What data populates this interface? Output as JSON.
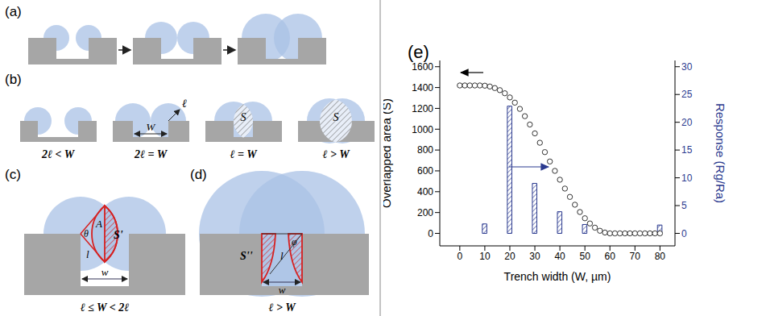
{
  "chart_data": {
    "type": "combo",
    "title": "(e)",
    "x_label": "Trench width (W, µm)",
    "y_label": "Overlapped area (S)",
    "y2_label": "Response (Rg/Ra)",
    "x": [
      0,
      2,
      4,
      6,
      8,
      10,
      12,
      14,
      16,
      18,
      20,
      22,
      24,
      26,
      28,
      30,
      32,
      34,
      36,
      38,
      40,
      42,
      44,
      46,
      48,
      50,
      52,
      54,
      56,
      58,
      60,
      62,
      64,
      66,
      68,
      70,
      72,
      74,
      76,
      78,
      80
    ],
    "series": [
      {
        "type": "scatter",
        "marker": "open circle",
        "color": "#333333",
        "values": [
          1420,
          1420,
          1420,
          1420,
          1420,
          1418,
          1410,
          1395,
          1375,
          1345,
          1305,
          1255,
          1195,
          1125,
          1045,
          960,
          870,
          780,
          690,
          600,
          515,
          430,
          350,
          275,
          205,
          145,
          95,
          55,
          25,
          8,
          0,
          0,
          0,
          0,
          0,
          0,
          0,
          0,
          0,
          0,
          0
        ]
      },
      {
        "type": "bar",
        "axis": "y2",
        "color": "#2b3a8f",
        "values": [
          null,
          null,
          null,
          null,
          null,
          1.7,
          null,
          null,
          null,
          null,
          22.9,
          null,
          null,
          null,
          null,
          9,
          null,
          null,
          null,
          null,
          3.9,
          null,
          null,
          null,
          null,
          1.6,
          null,
          null,
          null,
          null,
          null,
          null,
          null,
          null,
          null,
          null,
          null,
          null,
          null,
          null,
          1.5
        ]
      }
    ],
    "xlim": [
      -8,
      86
    ],
    "xticks": [
      0,
      10,
      20,
      30,
      40,
      50,
      60,
      70,
      80
    ],
    "ylim": [
      -120,
      1660
    ],
    "yticks": [
      0,
      200,
      400,
      600,
      800,
      1000,
      1200,
      1400,
      1600
    ],
    "y2lim": [
      -2.25,
      31.125
    ],
    "y2ticks": [
      0,
      5,
      10,
      15,
      20,
      25,
      30
    ],
    "grid": false
  },
  "diagram": {
    "a": {
      "label": "(a)"
    },
    "b": {
      "label": "(b)",
      "cases": [
        "2ℓ < W",
        "2ℓ = W",
        "ℓ = W",
        "ℓ > W"
      ],
      "length": "ℓ",
      "width": "W",
      "area": "S"
    },
    "c": {
      "label": "(c)",
      "caption": "ℓ ≤ W < 2ℓ",
      "chord": "A",
      "angle": "θ",
      "area": "S'",
      "length": "l",
      "width": "w"
    },
    "d": {
      "label": "(d)",
      "caption": "ℓ > W",
      "angle": "φ",
      "area": "S''",
      "length": "l",
      "width": "w"
    }
  }
}
